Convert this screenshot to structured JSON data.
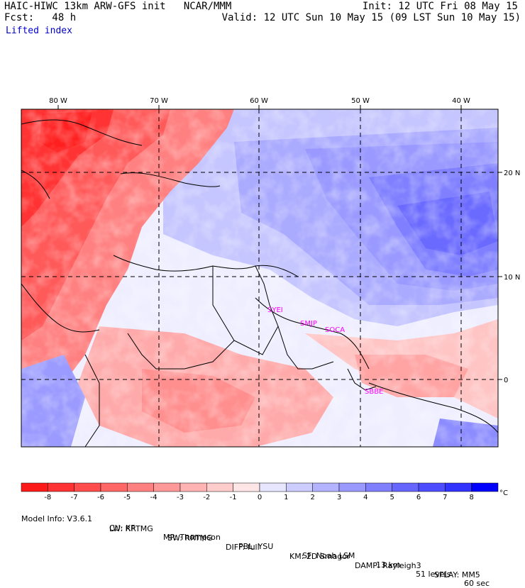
{
  "header": {
    "left_line1": "HAIC-HIWC 13km ARW-GFS init   NCAR/MMM",
    "left_line2": "Fcst:   48 h",
    "field_name": "Lifted index",
    "right_line1": "Init: 12 UTC Fri 08 May 15",
    "right_line2": "Valid: 12 UTC Sun 10 May 15 (09 LST Sun 10 May 15)"
  },
  "map": {
    "lon_labels": [
      "80 W",
      "70 W",
      "60 W",
      "50 W",
      "40 W"
    ],
    "lat_labels": [
      "20 N",
      "10 N",
      "0"
    ],
    "stations": [
      "SYEI",
      "SMJP",
      "SOCA",
      "SBBE"
    ],
    "station_color": "#ff00ff"
  },
  "colorbar": {
    "labels": [
      "-8",
      "-7",
      "-6",
      "-5",
      "-4",
      "-3",
      "-2",
      "-1",
      "0",
      "1",
      "2",
      "3",
      "4",
      "5",
      "6",
      "7",
      "8"
    ],
    "unit": "°C",
    "colors": [
      "#ff1a1a",
      "#ff3333",
      "#ff4d4d",
      "#ff6666",
      "#ff8080",
      "#ff9999",
      "#ffb3b3",
      "#ffcccc",
      "#ffe6e6",
      "#e6e6ff",
      "#ccccff",
      "#b3b3ff",
      "#9999ff",
      "#8080ff",
      "#6666ff",
      "#4d4dff",
      "#3333ff",
      "#0000ff"
    ]
  },
  "footer": {
    "line1": [
      "Model Info: V3.6.1",
      "CU: KF",
      "MP: Thompson",
      "PBL: YSU",
      "SF: Noah LSM",
      "13 km",
      "51 levels",
      "60 sec"
    ],
    "line2": [
      "LW: RRTMG",
      "SW: RRTMG",
      "DIFF: full",
      "KM: 2D Smagor",
      "DAMP: Rayleigh3",
      "SFLAY: MM5"
    ]
  }
}
